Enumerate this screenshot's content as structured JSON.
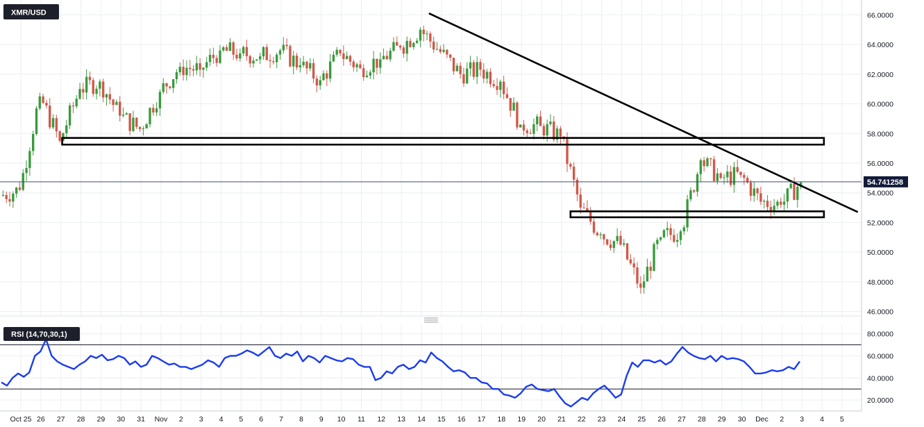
{
  "chart_data": [
    {
      "type": "candlestick",
      "title": "XMR/USD",
      "last_price": "54.741258",
      "ylim": [
        45.7,
        67.0
      ],
      "y_ticks": [
        "46.0000",
        "48.0000",
        "50.0000",
        "52.0000",
        "54.0000",
        "56.0000",
        "58.0000",
        "60.0000",
        "62.0000",
        "64.0000",
        "66.0000"
      ],
      "x_ticks": [
        "Oct 25",
        "26",
        "27",
        "28",
        "29",
        "30",
        "31",
        "Nov",
        "2",
        "3",
        "4",
        "5",
        "6",
        "7",
        "8",
        "9",
        "10",
        "11",
        "12",
        "13",
        "14",
        "15",
        "16",
        "17",
        "18",
        "19",
        "20",
        "21",
        "22",
        "23",
        "24",
        "25",
        "26",
        "27",
        "28",
        "29",
        "30",
        "Dec",
        "2",
        "3",
        "4",
        "5"
      ],
      "candle_interval": "4h",
      "close_by_day": [
        {
          "date": "Oct 25",
          "close": 54.2
        },
        {
          "date": "Oct 26",
          "close": 60.5
        },
        {
          "date": "Oct 27",
          "close": 57.5
        },
        {
          "date": "Oct 28",
          "close": 61.0
        },
        {
          "date": "Oct 29",
          "close": 61.5
        },
        {
          "date": "Oct 30",
          "close": 59.2
        },
        {
          "date": "Oct 31",
          "close": 58.3
        },
        {
          "date": "Nov 1",
          "close": 60.8
        },
        {
          "date": "Nov 2",
          "close": 62.5
        },
        {
          "date": "Nov 3",
          "close": 62.3
        },
        {
          "date": "Nov 4",
          "close": 63.6
        },
        {
          "date": "Nov 5",
          "close": 63.4
        },
        {
          "date": "Nov 6",
          "close": 63.2
        },
        {
          "date": "Nov 7",
          "close": 63.6
        },
        {
          "date": "Nov 8",
          "close": 62.6
        },
        {
          "date": "Nov 9",
          "close": 61.6
        },
        {
          "date": "Nov 10",
          "close": 63.4
        },
        {
          "date": "Nov 11",
          "close": 62.4
        },
        {
          "date": "Nov 12",
          "close": 63.0
        },
        {
          "date": "Nov 13",
          "close": 63.8
        },
        {
          "date": "Nov 14",
          "close": 65.0
        },
        {
          "date": "Nov 15",
          "close": 63.5
        },
        {
          "date": "Nov 16",
          "close": 62.0
        },
        {
          "date": "Nov 17",
          "close": 62.3
        },
        {
          "date": "Nov 18",
          "close": 61.5
        },
        {
          "date": "Nov 19",
          "close": 58.6
        },
        {
          "date": "Nov 20",
          "close": 58.5
        },
        {
          "date": "Nov 21",
          "close": 57.8
        },
        {
          "date": "Nov 22",
          "close": 53.0
        },
        {
          "date": "Nov 23",
          "close": 51.2
        },
        {
          "date": "Nov 24",
          "close": 50.5
        },
        {
          "date": "Nov 25",
          "close": 47.6
        },
        {
          "date": "Nov 26",
          "close": 51.0
        },
        {
          "date": "Nov 27",
          "close": 51.4
        },
        {
          "date": "Nov 28",
          "close": 56.2
        },
        {
          "date": "Nov 29",
          "close": 55.0
        },
        {
          "date": "Nov 30",
          "close": 55.2
        },
        {
          "date": "Dec 1",
          "close": 53.4
        },
        {
          "date": "Dec 2",
          "close": 53.2
        },
        {
          "date": "Dec 3",
          "close": 54.7
        }
      ],
      "annotations": [
        {
          "kind": "trendline",
          "from": {
            "date": "Nov 15",
            "price": 66.1
          },
          "to": {
            "date": "Dec 5",
            "price": 52.7
          }
        },
        {
          "kind": "box",
          "from_date": "Oct 28",
          "to_date": "Dec 4",
          "price_low": 57.25,
          "price_high": 57.7
        },
        {
          "kind": "box",
          "from_date": "Nov 22",
          "to_date": "Dec 4",
          "price_low": 52.35,
          "price_high": 52.75
        },
        {
          "kind": "hline",
          "price": 54.741258
        }
      ],
      "grid": true
    },
    {
      "type": "line",
      "title": "RSI (14,70,30,1)",
      "ylim": [
        10,
        88
      ],
      "y_ticks": [
        "20.0000",
        "40.0000",
        "60.0000",
        "80.0000"
      ],
      "levels": [
        70,
        30
      ],
      "values": [
        36,
        33,
        40,
        44,
        41,
        45,
        60,
        64,
        75,
        60,
        55,
        52,
        50,
        48,
        52,
        55,
        60,
        58,
        61,
        56,
        57,
        60,
        58,
        52,
        55,
        50,
        52,
        60,
        58,
        55,
        52,
        53,
        50,
        50,
        48,
        50,
        52,
        56,
        54,
        50,
        58,
        60,
        60,
        62,
        65,
        63,
        60,
        64,
        68,
        60,
        58,
        62,
        60,
        64,
        55,
        60,
        58,
        54,
        60,
        58,
        56,
        55,
        58,
        57,
        52,
        50,
        50,
        38,
        40,
        46,
        44,
        50,
        52,
        48,
        50,
        56,
        54,
        63,
        58,
        55,
        50,
        46,
        47,
        45,
        40,
        40,
        36,
        35,
        30,
        30,
        25,
        24,
        22,
        26,
        32,
        34,
        30,
        29,
        28,
        30,
        23,
        17,
        14,
        18,
        22,
        20,
        26,
        30,
        33,
        28,
        22,
        25,
        42,
        54,
        50,
        56,
        56,
        54,
        56,
        52,
        55,
        62,
        68,
        63,
        60,
        58,
        57,
        60,
        55,
        60,
        57,
        58,
        57,
        55,
        50,
        44,
        44,
        45,
        47,
        46,
        47,
        50,
        48,
        55
      ]
    }
  ],
  "icons": {
    "resize_handle": "drag-handle-icon"
  },
  "colors": {
    "up": "#3a9a3d",
    "down": "#d0584a",
    "rsi": "#1a3cf0",
    "price_badge": "#131b3a",
    "grid": "#eceef2"
  }
}
